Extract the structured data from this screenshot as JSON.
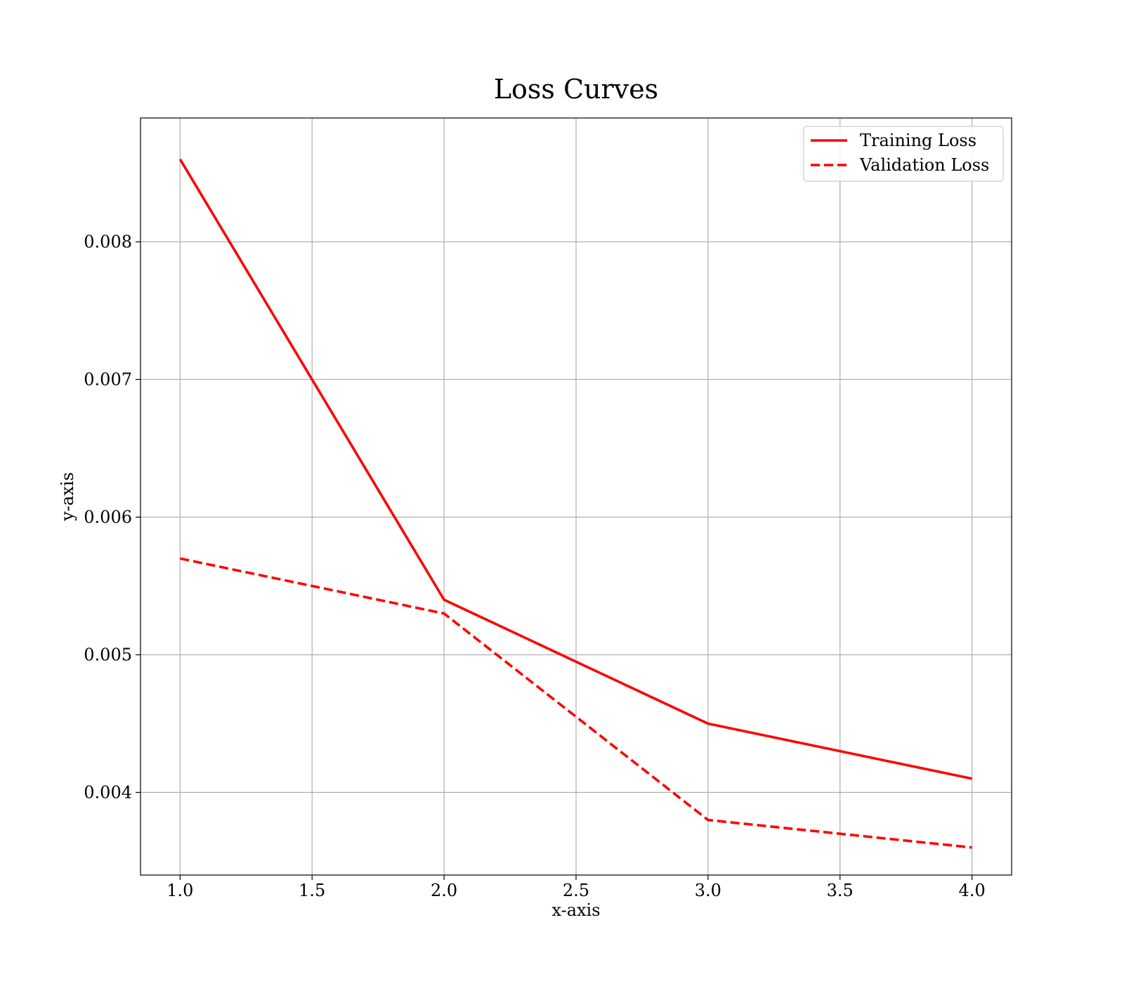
{
  "chart_data": {
    "type": "line",
    "title": "Loss Curves",
    "xlabel": "x-axis",
    "ylabel": "y-axis",
    "xlim": [
      0.85,
      4.15
    ],
    "ylim": [
      0.0034,
      0.0089
    ],
    "xticks": [
      1.0,
      1.5,
      2.0,
      2.5,
      3.0,
      3.5,
      4.0
    ],
    "xtick_labels": [
      "1.0",
      "1.5",
      "2.0",
      "2.5",
      "3.0",
      "3.5",
      "4.0"
    ],
    "yticks": [
      0.004,
      0.005,
      0.006,
      0.007,
      0.008
    ],
    "ytick_labels": [
      "0.004",
      "0.005",
      "0.006",
      "0.007",
      "0.008"
    ],
    "grid": true,
    "legend": "upper right",
    "x": [
      1,
      2,
      3,
      4
    ],
    "series": [
      {
        "name": "Training Loss",
        "values": [
          0.0086,
          0.0054,
          0.0045,
          0.0041
        ],
        "color": "#ff0000",
        "style": "solid"
      },
      {
        "name": "Validation Loss",
        "values": [
          0.0057,
          0.0053,
          0.0038,
          0.0036
        ],
        "color": "#ff0000",
        "style": "dashed"
      }
    ]
  }
}
